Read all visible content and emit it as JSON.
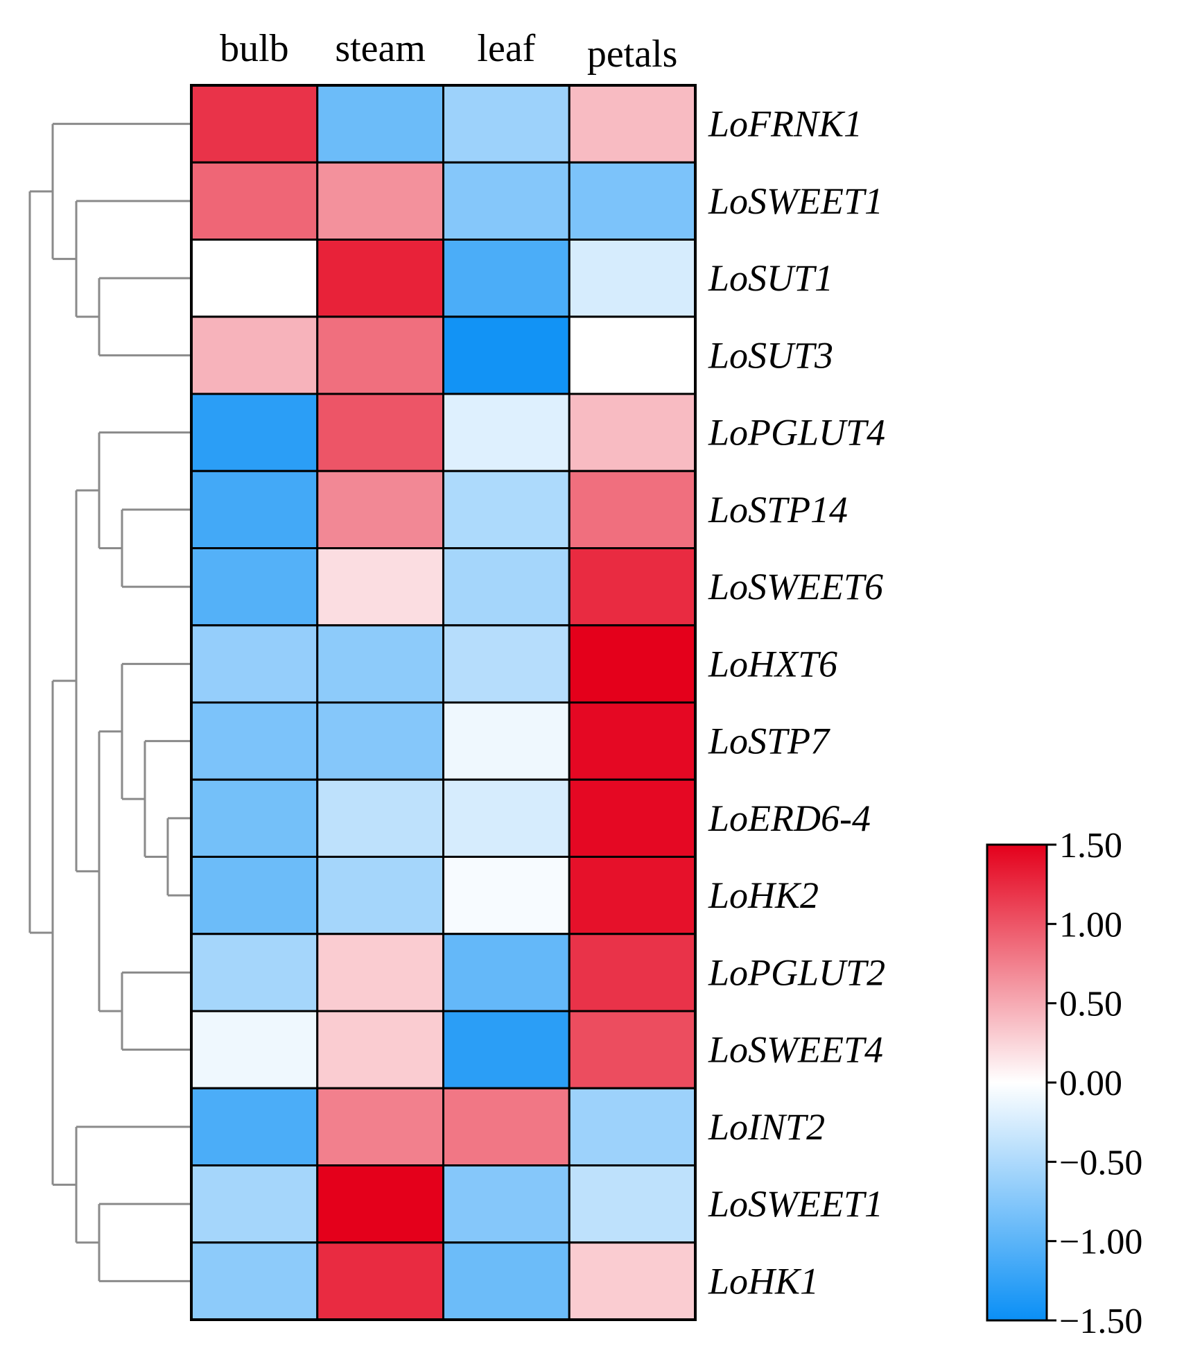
{
  "chart_data": {
    "type": "heatmap",
    "columns": [
      "bulb",
      "steam",
      "leaf",
      "petals"
    ],
    "rows": [
      "LoFRNK1",
      "LoSWEET1",
      "LoSUT1",
      "LoSUT3",
      "LoPGLUT4",
      "LoSTP14",
      "LoSWEET6",
      "LoHXT6",
      "LoSTP7",
      "LoERD6-4",
      "LoHK2",
      "LoPGLUT2",
      "LoSWEET4",
      "LoINT2",
      "LoSWEET1",
      "LoHK1"
    ],
    "values": [
      [
        1.2,
        -0.9,
        -0.6,
        0.4
      ],
      [
        0.9,
        0.65,
        -0.75,
        -0.8
      ],
      [
        0.0,
        1.3,
        -1.1,
        -0.25
      ],
      [
        0.45,
        0.85,
        -1.45,
        0.0
      ],
      [
        -1.3,
        1.0,
        -0.2,
        0.4
      ],
      [
        -1.15,
        0.7,
        -0.5,
        0.85
      ],
      [
        -1.05,
        0.2,
        -0.55,
        1.25
      ],
      [
        -0.65,
        -0.7,
        -0.45,
        1.5
      ],
      [
        -0.8,
        -0.75,
        -0.1,
        1.45
      ],
      [
        -0.85,
        -0.4,
        -0.25,
        1.45
      ],
      [
        -0.9,
        -0.55,
        -0.05,
        1.4
      ],
      [
        -0.55,
        0.3,
        -0.95,
        1.2
      ],
      [
        -0.1,
        0.3,
        -1.3,
        1.05
      ],
      [
        -1.1,
        0.75,
        0.8,
        -0.6
      ],
      [
        -0.55,
        1.5,
        -0.75,
        -0.4
      ],
      [
        -0.7,
        1.25,
        -0.9,
        0.3
      ]
    ],
    "colorbar": {
      "min": -1.5,
      "max": 1.5,
      "ticks": [
        "1.50",
        "1.00",
        "0.50",
        "0.00",
        "−0.50",
        "−1.00",
        "−1.50"
      ],
      "colors": {
        "low": "#0a8ff5",
        "mid": "#ffffff",
        "high": "#e4001b"
      }
    },
    "dendrogram": "hierarchical clustering of rows (left side)"
  }
}
